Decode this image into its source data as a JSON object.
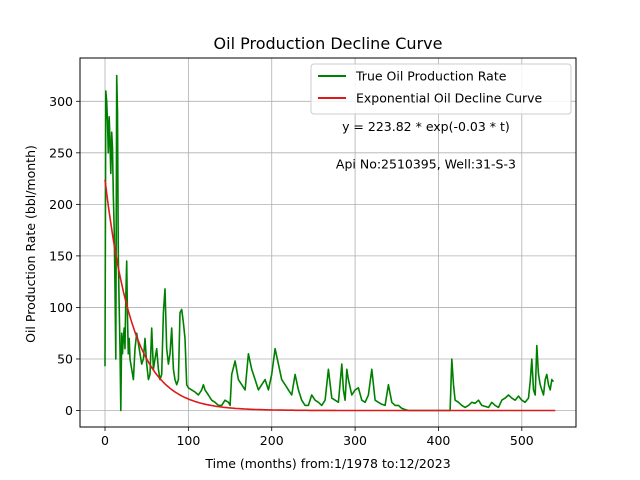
{
  "chart_data": {
    "type": "line",
    "title": "Oil Production Decline Curve",
    "xlabel": "Time (months) from:1/1978 to:12/2023",
    "ylabel": "Oil Production Rate (bbl/month)",
    "xlim": [
      -30,
      565
    ],
    "ylim": [
      -16,
      342
    ],
    "xticks": [
      0,
      100,
      200,
      300,
      400,
      500
    ],
    "yticks": [
      0,
      50,
      100,
      150,
      200,
      250,
      300
    ],
    "grid": true,
    "legend_position": "top-right",
    "annotations": [
      {
        "text": "y = 223.82 * exp(-0.03 * t)",
        "x": 385,
        "y": 271
      },
      {
        "text": "Api No:2510395, Well:31-S-3",
        "x": 385,
        "y": 235
      }
    ],
    "series": [
      {
        "name": "True Oil Production Rate",
        "color": "#008000",
        "x": [
          0,
          1,
          2,
          3,
          4,
          5,
          6,
          7,
          8,
          9,
          10,
          11,
          12,
          13,
          14,
          15,
          16,
          17,
          18,
          19,
          20,
          21,
          22,
          23,
          24,
          25,
          26,
          27,
          28,
          29,
          30,
          32,
          34,
          36,
          38,
          40,
          42,
          44,
          46,
          48,
          50,
          52,
          54,
          56,
          58,
          60,
          62,
          64,
          66,
          68,
          70,
          72,
          74,
          76,
          78,
          80,
          82,
          84,
          86,
          88,
          90,
          92,
          94,
          96,
          98,
          100,
          104,
          108,
          112,
          116,
          118,
          120,
          124,
          128,
          132,
          136,
          140,
          144,
          148,
          150,
          152,
          156,
          160,
          164,
          168,
          172,
          176,
          180,
          184,
          188,
          192,
          196,
          200,
          204,
          208,
          212,
          216,
          220,
          224,
          228,
          232,
          236,
          240,
          244,
          248,
          252,
          256,
          260,
          264,
          268,
          272,
          276,
          280,
          284,
          286,
          288,
          290,
          292,
          296,
          300,
          304,
          308,
          312,
          316,
          320,
          324,
          328,
          332,
          336,
          340,
          344,
          348,
          352,
          356,
          360,
          364,
          368,
          372,
          376,
          380,
          384,
          388,
          392,
          396,
          400,
          404,
          408,
          412,
          414,
          416,
          418,
          420,
          424,
          428,
          432,
          436,
          440,
          444,
          448,
          452,
          456,
          460,
          464,
          468,
          472,
          476,
          480,
          484,
          488,
          492,
          496,
          500,
          504,
          508,
          510,
          512,
          514,
          516,
          518,
          520,
          522,
          524,
          526,
          528,
          530,
          532,
          534,
          536,
          538
        ],
        "y": [
          43,
          310,
          300,
          280,
          250,
          285,
          260,
          230,
          270,
          255,
          210,
          175,
          120,
          50,
          325,
          290,
          150,
          100,
          60,
          0,
          75,
          55,
          70,
          80,
          60,
          110,
          145,
          90,
          55,
          70,
          50,
          40,
          30,
          60,
          75,
          65,
          55,
          45,
          50,
          70,
          45,
          30,
          35,
          80,
          40,
          50,
          60,
          40,
          30,
          35,
          95,
          118,
          60,
          45,
          55,
          80,
          40,
          30,
          25,
          30,
          95,
          98,
          85,
          70,
          25,
          22,
          20,
          18,
          15,
          20,
          25,
          20,
          15,
          10,
          8,
          5,
          5,
          10,
          8,
          5,
          35,
          48,
          30,
          25,
          20,
          55,
          40,
          30,
          20,
          25,
          30,
          20,
          35,
          60,
          45,
          30,
          25,
          20,
          15,
          35,
          20,
          10,
          5,
          5,
          15,
          10,
          8,
          5,
          10,
          40,
          12,
          10,
          8,
          45,
          20,
          10,
          40,
          30,
          15,
          20,
          22,
          10,
          8,
          15,
          40,
          10,
          8,
          6,
          5,
          25,
          8,
          5,
          5,
          2,
          1,
          0,
          0,
          0,
          0,
          0,
          0,
          0,
          0,
          0,
          0,
          0,
          0,
          0,
          0,
          50,
          25,
          10,
          8,
          5,
          3,
          5,
          8,
          7,
          10,
          5,
          4,
          3,
          8,
          5,
          3,
          10,
          12,
          15,
          12,
          10,
          14,
          10,
          8,
          12,
          28,
          50,
          20,
          15,
          63,
          35,
          25,
          20,
          15,
          30,
          35,
          25,
          20,
          30,
          28
        ]
      },
      {
        "name": "Exponential Oil Decline Curve",
        "color": "#dd1a1a",
        "a": 223.82,
        "b": 0.03,
        "t_range": [
          0,
          540
        ]
      }
    ]
  }
}
